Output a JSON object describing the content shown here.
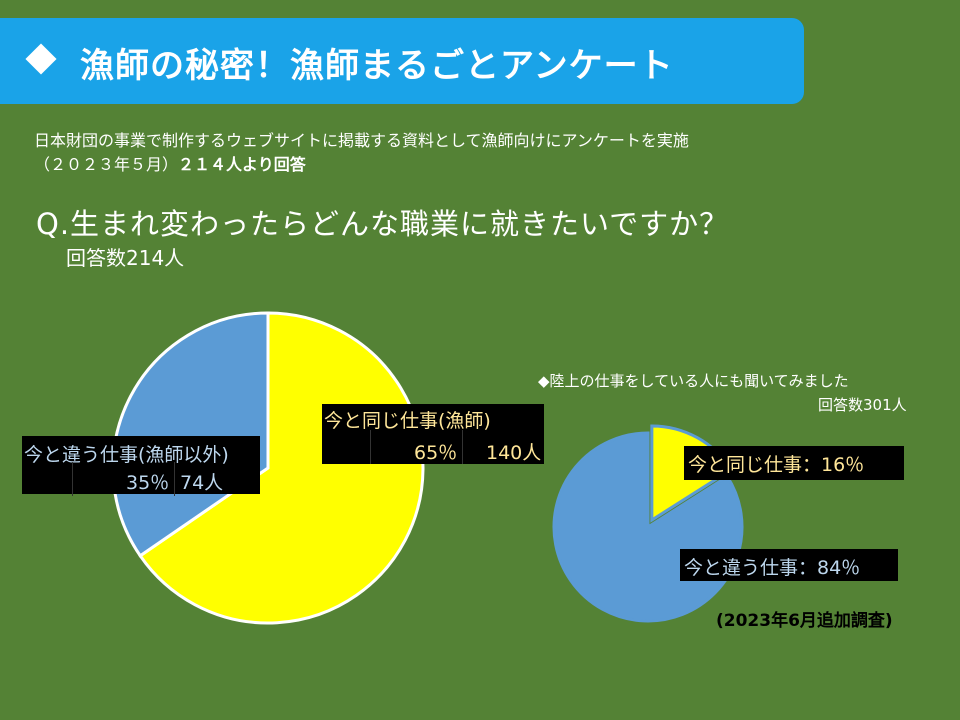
{
  "banner": {
    "title": "漁師の秘密！漁師まるごとアンケート"
  },
  "description": {
    "line1": "日本財団の事業で制作するウェブサイトに掲載する資料として漁師向けにアンケートを実施",
    "line2_date": "（２０２３年５月）",
    "line2_count": "２１４人より回答"
  },
  "question": "Q.生まれ変わったらどんな職業に就きたいですか？",
  "survey1_count": "回答数214人",
  "survey2": {
    "title": "◆陸上の仕事をしている人にも聞いてみました",
    "count": "回答数301人",
    "note": "(2023年6月追加調査)"
  },
  "colors": {
    "background": "#548235",
    "banner": "#1aa3e8",
    "same": "#ffff00",
    "different": "#5b9bd5"
  },
  "chart_data": [
    {
      "type": "pie",
      "title": "",
      "slices": [
        {
          "label": "今と同じ仕事(漁師)",
          "percent_label": "65％",
          "count_label": "140人",
          "value": 140,
          "percent": 65,
          "color": "#ffff00"
        },
        {
          "label": "今と違う仕事(漁師以外)",
          "percent_label": "35％",
          "count_label": "74人",
          "value": 74,
          "percent": 35,
          "color": "#5b9bd5"
        }
      ],
      "total": 214
    },
    {
      "type": "pie",
      "title": "",
      "slices": [
        {
          "label": "今と同じ仕事：16％",
          "value": 16,
          "percent": 16,
          "color": "#ffff00"
        },
        {
          "label": "今と違う仕事：84％",
          "value": 84,
          "percent": 84,
          "color": "#5b9bd5"
        }
      ],
      "total": 301
    }
  ]
}
